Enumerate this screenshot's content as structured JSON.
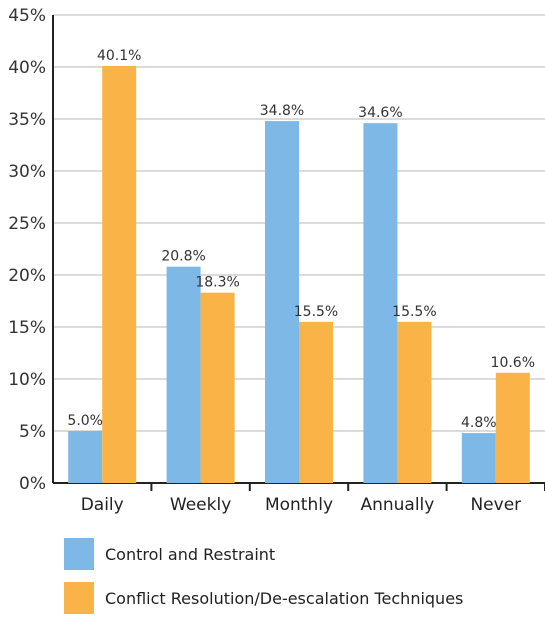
{
  "chart_data": {
    "type": "bar",
    "categories": [
      "Daily",
      "Weekly",
      "Monthly",
      "Annually",
      "Never"
    ],
    "series": [
      {
        "name": "Control and Restraint",
        "color": "#7db8e6",
        "values": [
          5.0,
          20.8,
          34.8,
          34.6,
          4.8
        ],
        "labels": [
          "5.0%",
          "20.8%",
          "34.8%",
          "34.6%",
          "4.8%"
        ]
      },
      {
        "name": "Conflict Resolution/De-escalation Techniques",
        "color": "#f9b347",
        "values": [
          40.1,
          18.3,
          15.5,
          15.5,
          10.6
        ],
        "labels": [
          "40.1%",
          "18.3%",
          "15.5%",
          "15.5%",
          "10.6%"
        ]
      }
    ],
    "ylim": [
      0,
      45
    ],
    "yticks": [
      0,
      5,
      10,
      15,
      20,
      25,
      30,
      35,
      40,
      45
    ],
    "ytick_labels": [
      "0%",
      "5%",
      "10%",
      "15%",
      "20%",
      "25%",
      "30%",
      "35%",
      "40%",
      "45%"
    ],
    "grid": true,
    "legend_position": "bottom",
    "title": "",
    "xlabel": "",
    "ylabel": ""
  }
}
